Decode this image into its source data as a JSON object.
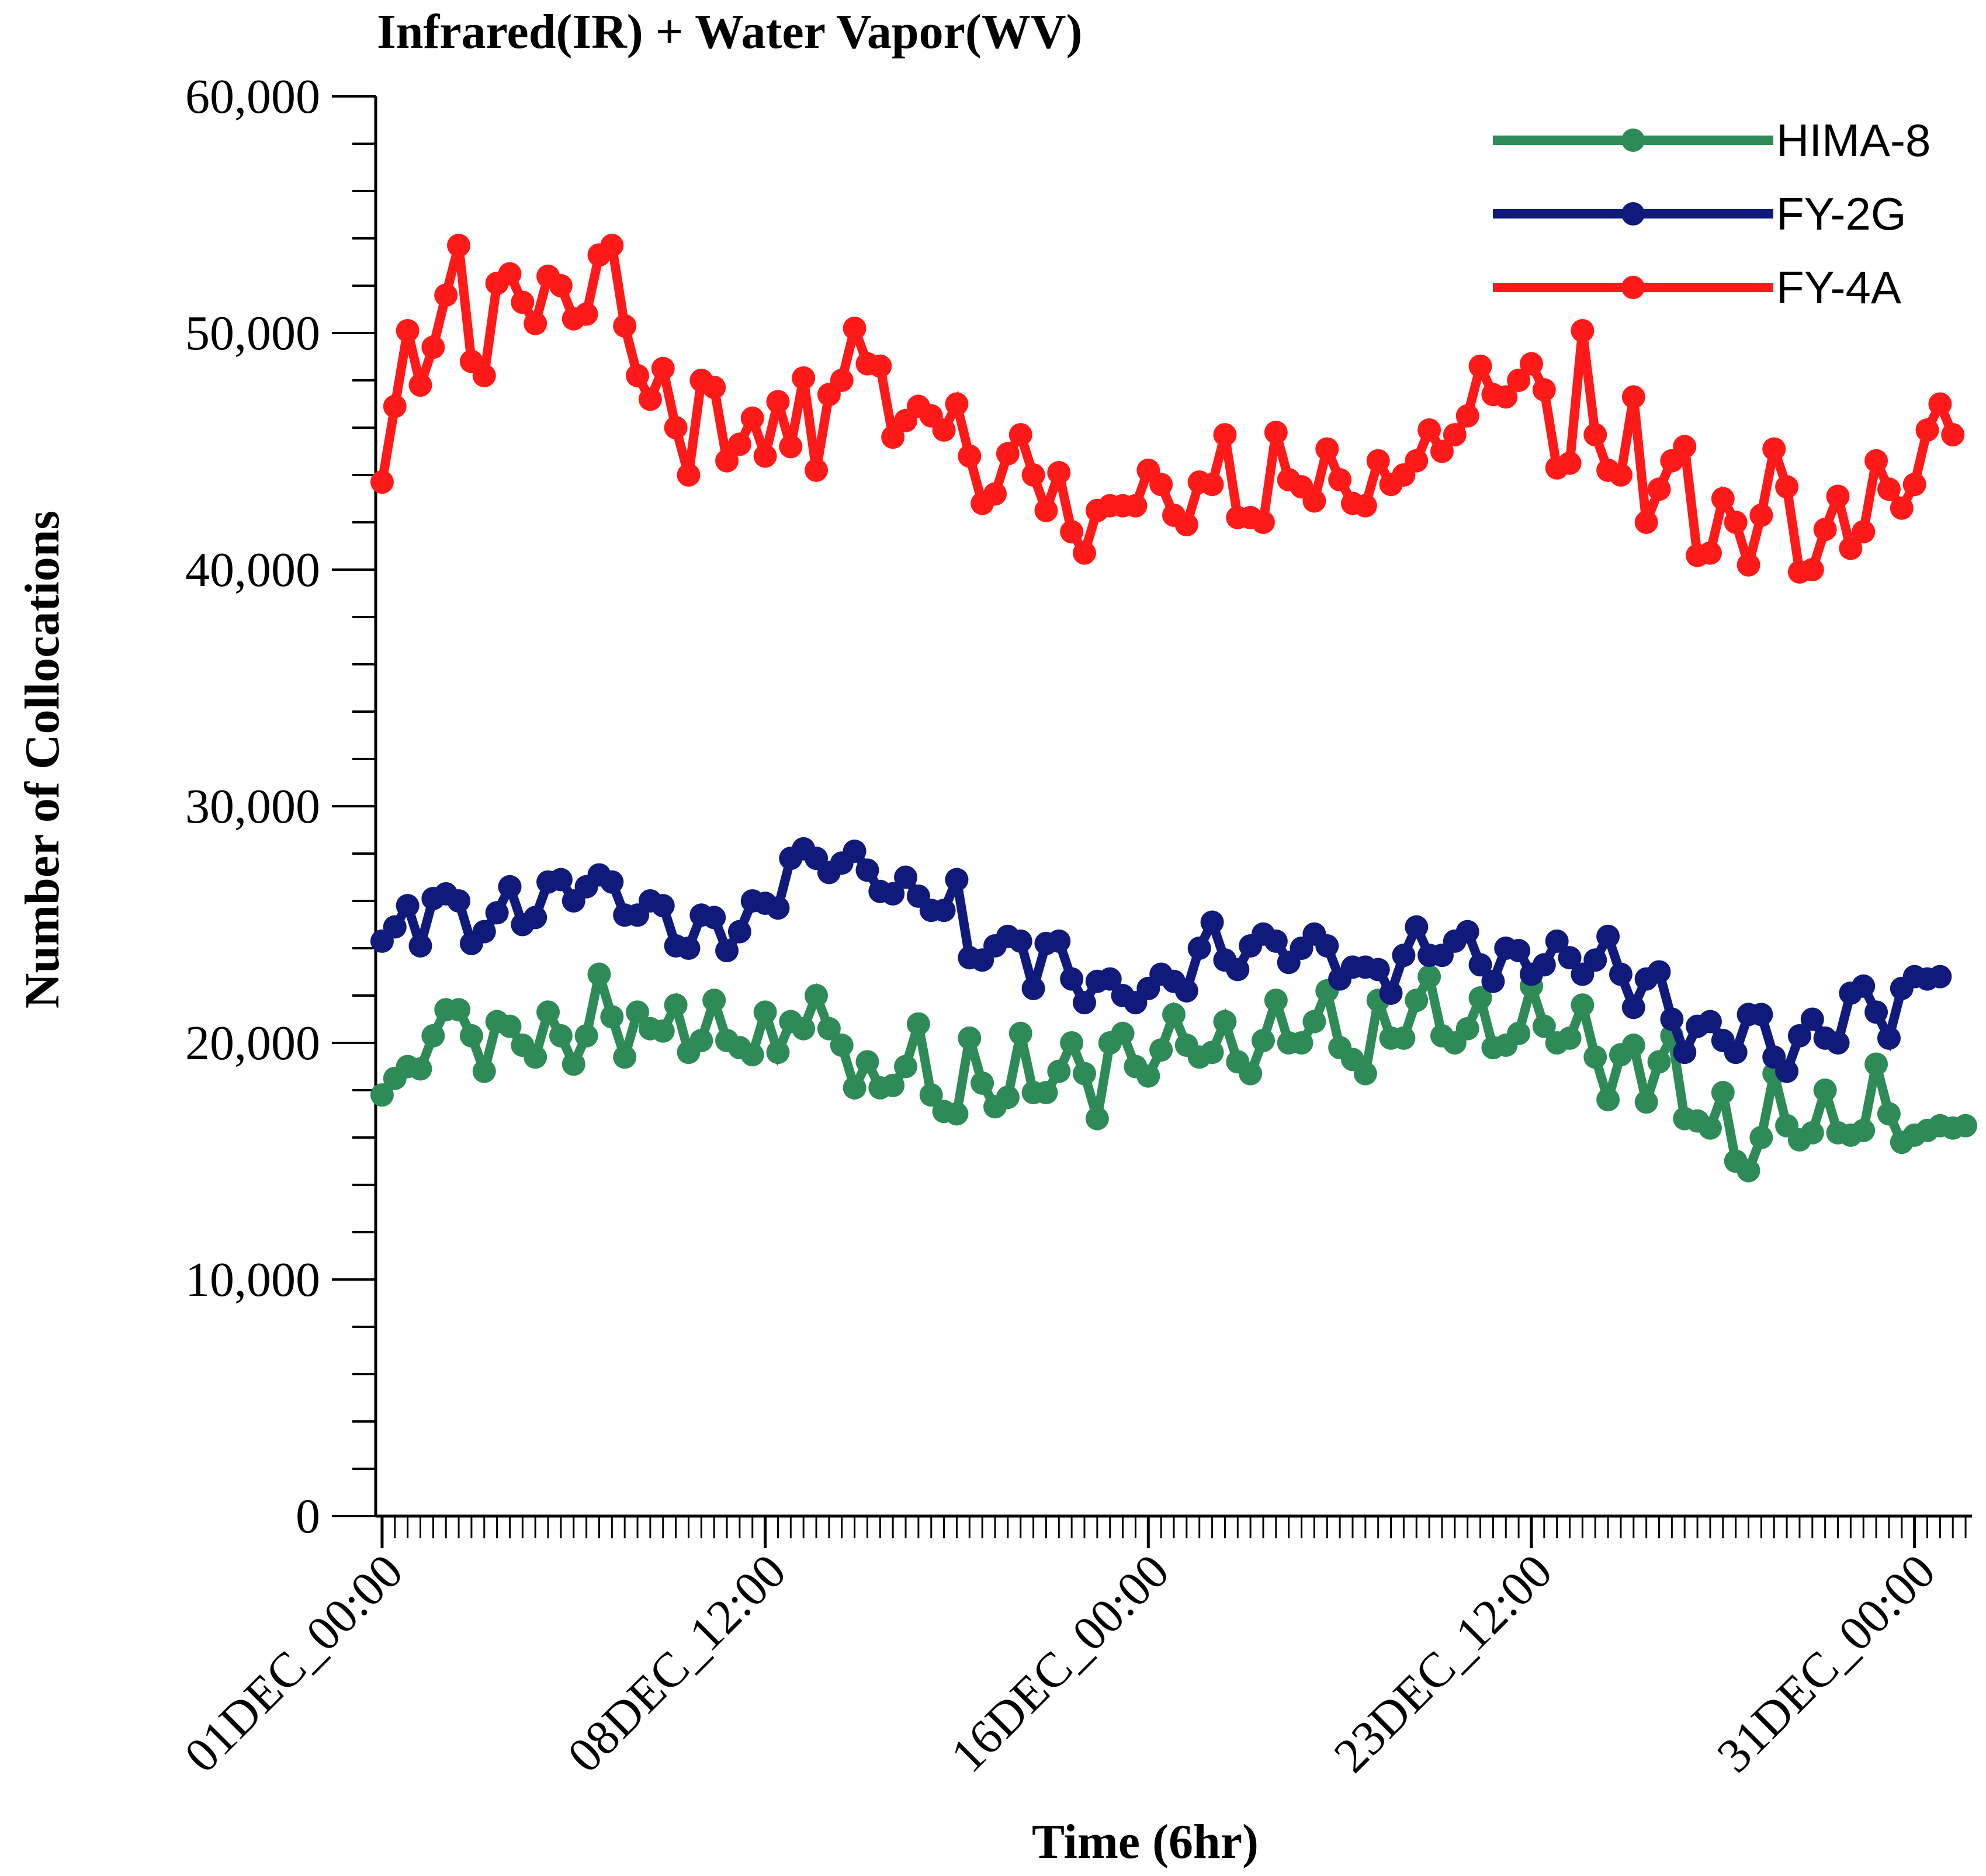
{
  "chart_data": {
    "type": "line",
    "title": "Infrared(IR) + Water Vapor(WV)",
    "xlabel": "Time (6hr)",
    "ylabel": "Number of Collocations",
    "ylim": [
      0,
      60000
    ],
    "yticks": [
      0,
      10000,
      20000,
      30000,
      40000,
      50000,
      60000
    ],
    "ytick_labels": [
      "0",
      "10,000",
      "20,000",
      "30,000",
      "40,000",
      "50,000",
      "60,000"
    ],
    "xlim": [
      -0.5,
      124.5
    ],
    "xticks": [
      0,
      30,
      60,
      90,
      120
    ],
    "xtick_labels": [
      "01DEC_00:00",
      "08DEC_12:00",
      "16DEC_00:00",
      "23DEC_12:00",
      "31DEC_00:00"
    ],
    "legend_position": "top-right",
    "series": [
      {
        "name": "HIMA-8",
        "color": "#2e8b57",
        "values": [
          17800,
          18500,
          19000,
          18900,
          20300,
          21400,
          21400,
          20300,
          18800,
          20900,
          20700,
          19900,
          19400,
          21300,
          20300,
          19100,
          20300,
          22900,
          21100,
          19400,
          21300,
          20600,
          20500,
          21600,
          19600,
          20100,
          21800,
          20100,
          19800,
          19500,
          21300,
          19600,
          20900,
          20600,
          22000,
          20600,
          19900,
          18100,
          19200,
          18100,
          18200,
          19000,
          20800,
          17800,
          17100,
          17000,
          20200,
          18300,
          17300,
          17700,
          20400,
          17900,
          17900,
          18800,
          20000,
          18700,
          16800,
          20000,
          20400,
          19000,
          18600,
          19700,
          21200,
          19900,
          19400,
          19600,
          20900,
          19200,
          18700,
          20100,
          21800,
          20000,
          20000,
          20900,
          22200,
          19800,
          19300,
          18700,
          21800,
          20200,
          20200,
          21800,
          22800,
          20300,
          20000,
          20600,
          21900,
          19800,
          19900,
          20400,
          22400,
          20700,
          20000,
          20200,
          21600,
          19400,
          17600,
          19500,
          19900,
          17500,
          19200,
          20300,
          16800,
          16700,
          16400,
          17900,
          15000,
          14600,
          16000,
          18700,
          16500,
          15900,
          16200,
          18000,
          16200,
          16100,
          16300,
          19100,
          17000,
          15800,
          16100,
          16300,
          16500,
          16400,
          16500
        ]
      },
      {
        "name": "FY-2G",
        "color": "#0f1a7a",
        "values": [
          24300,
          24900,
          25800,
          24100,
          26100,
          26300,
          26000,
          24200,
          24700,
          25500,
          26600,
          25000,
          25300,
          26800,
          26900,
          26000,
          26600,
          27100,
          26800,
          25400,
          25400,
          26000,
          25800,
          24100,
          24000,
          25400,
          25300,
          23900,
          24700,
          26000,
          25900,
          25700,
          27800,
          28200,
          27800,
          27200,
          27600,
          28100,
          27300,
          26400,
          26300,
          27000,
          26200,
          25600,
          25600,
          26900,
          23600,
          23500,
          24100,
          24500,
          24300,
          22300,
          24200,
          24300,
          22700,
          21700,
          22600,
          22700,
          22000,
          21700,
          22300,
          22900,
          22600,
          22200,
          24000,
          25100,
          23500,
          23100,
          24100,
          24600,
          24300,
          23400,
          24000,
          24600,
          24100,
          22700,
          23200,
          23200,
          23100,
          22100,
          23700,
          24900,
          23700,
          23700,
          24300,
          24700,
          23300,
          22600,
          24000,
          23900,
          22900,
          23300,
          24300,
          23600,
          22900,
          23500,
          24500,
          22900,
          21500,
          22700,
          23000,
          21000,
          19600,
          20700,
          20900,
          20100,
          19600,
          21200,
          21200,
          19400,
          18800,
          20300,
          21000,
          20200,
          20000,
          22100,
          22400,
          21300,
          20200,
          22300,
          22800,
          22700,
          22800
        ]
      },
      {
        "name": "FY-4A",
        "color": "#ff1a1a",
        "values": [
          43700,
          46900,
          50100,
          47800,
          49400,
          51600,
          53700,
          48800,
          48200,
          52100,
          52500,
          51300,
          50400,
          52400,
          52000,
          50600,
          50800,
          53300,
          53700,
          50300,
          48200,
          47200,
          48500,
          46000,
          44000,
          48000,
          47700,
          44600,
          45300,
          46400,
          44800,
          47100,
          45200,
          48100,
          44200,
          47400,
          48000,
          50200,
          48700,
          48600,
          45600,
          46300,
          46900,
          46500,
          45900,
          47000,
          44800,
          42800,
          43200,
          44900,
          45700,
          44000,
          42500,
          44100,
          41600,
          40700,
          42500,
          42700,
          42700,
          42700,
          44200,
          43600,
          42300,
          41900,
          43700,
          43600,
          45700,
          42200,
          42200,
          42000,
          45800,
          43800,
          43500,
          42900,
          45100,
          43800,
          42800,
          42700,
          44600,
          43600,
          44000,
          44600,
          45900,
          45000,
          45700,
          46500,
          48600,
          47400,
          47300,
          48000,
          48700,
          47600,
          44300,
          44500,
          50100,
          45700,
          44200,
          44000,
          47300,
          42000,
          43400,
          44600,
          45200,
          40600,
          40700,
          43000,
          42000,
          40200,
          42300,
          45100,
          43500,
          39900,
          40000,
          41700,
          43100,
          40900,
          41600,
          44600,
          43400,
          42600,
          43600,
          45900,
          47000,
          45700
        ]
      }
    ]
  }
}
